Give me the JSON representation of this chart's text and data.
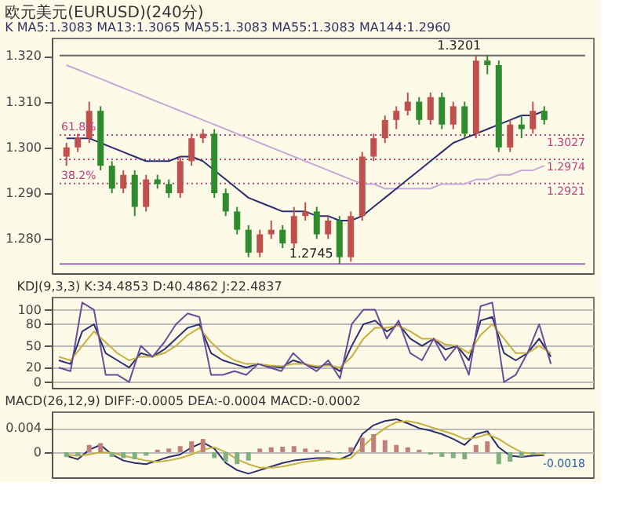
{
  "chart_data": [
    {
      "type": "candlestick",
      "title": "欧元美元(EURUSD)(240分)",
      "subtitle": "K MA5:1.3083 MA13:1.3065 MA55:1.3083 MA55:1.3083 MA144:1.2960",
      "categories": [
        null,
        null,
        null,
        null,
        null,
        null,
        null,
        null,
        null,
        null,
        null,
        null,
        null,
        null,
        null,
        null,
        null,
        null,
        null,
        null,
        null,
        null,
        null,
        null,
        null,
        null,
        null,
        null,
        null,
        null,
        null,
        null,
        null,
        null,
        null,
        null,
        null,
        null,
        null,
        null,
        null,
        null,
        null
      ],
      "ohlc": [
        [
          1.298,
          1.301,
          1.296,
          1.3
        ],
        [
          1.3,
          1.303,
          1.299,
          1.302
        ],
        [
          1.302,
          1.31,
          1.301,
          1.308
        ],
        [
          1.308,
          1.309,
          1.295,
          1.296
        ],
        [
          1.296,
          1.297,
          1.29,
          1.291
        ],
        [
          1.291,
          1.295,
          1.29,
          1.294
        ],
        [
          1.294,
          1.295,
          1.285,
          1.287
        ],
        [
          1.287,
          1.294,
          1.286,
          1.293
        ],
        [
          1.293,
          1.294,
          1.291,
          1.292
        ],
        [
          1.292,
          1.293,
          1.289,
          1.29
        ],
        [
          1.29,
          1.298,
          1.289,
          1.297
        ],
        [
          1.297,
          1.303,
          1.296,
          1.302
        ],
        [
          1.302,
          1.304,
          1.301,
          1.303
        ],
        [
          1.303,
          1.304,
          1.289,
          1.29
        ],
        [
          1.29,
          1.291,
          1.285,
          1.286
        ],
        [
          1.286,
          1.287,
          1.281,
          1.282
        ],
        [
          1.282,
          1.283,
          1.276,
          1.277
        ],
        [
          1.277,
          1.282,
          1.276,
          1.281
        ],
        [
          1.281,
          1.284,
          1.28,
          1.282
        ],
        [
          1.282,
          1.283,
          1.278,
          1.279
        ],
        [
          1.279,
          1.287,
          1.278,
          1.285
        ],
        [
          1.285,
          1.288,
          1.284,
          1.286
        ],
        [
          1.286,
          1.287,
          1.28,
          1.281
        ],
        [
          1.281,
          1.285,
          1.28,
          1.284
        ],
        [
          1.284,
          1.285,
          1.2745,
          1.276
        ],
        [
          1.276,
          1.286,
          1.275,
          1.285
        ],
        [
          1.285,
          1.299,
          1.284,
          1.298
        ],
        [
          1.298,
          1.303,
          1.297,
          1.302
        ],
        [
          1.302,
          1.307,
          1.301,
          1.306
        ],
        [
          1.306,
          1.309,
          1.304,
          1.308
        ],
        [
          1.308,
          1.312,
          1.307,
          1.31
        ],
        [
          1.31,
          1.311,
          1.305,
          1.306
        ],
        [
          1.306,
          1.312,
          1.305,
          1.311
        ],
        [
          1.311,
          1.312,
          1.304,
          1.305
        ],
        [
          1.305,
          1.31,
          1.304,
          1.309
        ],
        [
          1.309,
          1.31,
          1.302,
          1.303
        ],
        [
          1.303,
          1.32,
          1.302,
          1.319
        ],
        [
          1.319,
          1.3201,
          1.316,
          1.318
        ],
        [
          1.318,
          1.319,
          1.299,
          1.3
        ],
        [
          1.3,
          1.306,
          1.299,
          1.305
        ],
        [
          1.305,
          1.307,
          1.302,
          1.304
        ],
        [
          1.304,
          1.31,
          1.303,
          1.308
        ],
        [
          1.308,
          1.309,
          1.305,
          1.306
        ]
      ],
      "colors": [
        "#c0504d",
        "#c0504d",
        "#c0504d",
        "#2e8b2e",
        "#2e8b2e",
        "#c0504d",
        "#2e8b2e",
        "#c0504d",
        "#2e8b2e",
        "#2e8b2e",
        "#c0504d",
        "#c0504d",
        "#c0504d",
        "#2e8b2e",
        "#2e8b2e",
        "#2e8b2e",
        "#2e8b2e",
        "#c0504d",
        "#c0504d",
        "#2e8b2e",
        "#c0504d",
        "#c0504d",
        "#2e8b2e",
        "#c0504d",
        "#2e8b2e",
        "#c0504d",
        "#c0504d",
        "#c0504d",
        "#c0504d",
        "#c0504d",
        "#c0504d",
        "#2e8b2e",
        "#c0504d",
        "#2e8b2e",
        "#c0504d",
        "#2e8b2e",
        "#c0504d",
        "#2e8b2e",
        "#2e8b2e",
        "#c0504d",
        "#2e8b2e",
        "#c0504d",
        "#2e8b2e"
      ],
      "series": [
        {
          "type": "line",
          "color": "#c8a8d8",
          "values": [
            1.318,
            1.317,
            1.316,
            1.315,
            1.314,
            1.313,
            1.312,
            1.311,
            1.31,
            1.309,
            1.308,
            1.307,
            1.306,
            1.305,
            1.304,
            1.303,
            1.302,
            1.301,
            1.3,
            1.299,
            1.298,
            1.297,
            1.296,
            1.295,
            1.294,
            1.293,
            1.292,
            1.292,
            1.291,
            1.291,
            1.291,
            1.291,
            1.291,
            1.292,
            1.292,
            1.292,
            1.293,
            1.293,
            1.294,
            1.294,
            1.295,
            1.295,
            1.296
          ]
        },
        {
          "type": "line",
          "color": "#2b2f6e",
          "values": [
            1.302,
            1.302,
            1.302,
            1.301,
            1.3,
            1.299,
            1.298,
            1.297,
            1.297,
            1.297,
            1.298,
            1.298,
            1.297,
            1.295,
            1.293,
            1.291,
            1.289,
            1.288,
            1.287,
            1.286,
            1.286,
            1.286,
            1.285,
            1.285,
            1.284,
            1.284,
            1.285,
            1.287,
            1.289,
            1.291,
            1.293,
            1.295,
            1.297,
            1.299,
            1.301,
            1.302,
            1.303,
            1.304,
            1.305,
            1.306,
            1.307,
            1.307,
            1.308
          ]
        }
      ],
      "ylim": [
        1.2725,
        1.324
      ],
      "yticks": [
        {
          "value": 1.28,
          "label": "1.280"
        },
        {
          "value": 1.29,
          "label": "1.290"
        },
        {
          "value": 1.3,
          "label": "1.300"
        },
        {
          "value": 1.31,
          "label": "1.310"
        },
        {
          "value": 1.32,
          "label": "1.320"
        }
      ],
      "ref_lines": [
        {
          "axis": "y",
          "value": 1.3201,
          "label": null,
          "color": "#666666",
          "line_style": "solid"
        },
        {
          "axis": "y",
          "value": 1.3027,
          "label": "1.3027",
          "color": "#c04080",
          "line_style": "dotted"
        },
        {
          "axis": "y",
          "value": 1.2974,
          "label": "1.2974",
          "color": "#c04080",
          "line_style": "dotted"
        },
        {
          "axis": "y",
          "value": 1.2921,
          "label": "1.2921",
          "color": "#c04080",
          "line_style": "dotted"
        },
        {
          "axis": "y",
          "value": 1.2745,
          "label": null,
          "color": "#9a70b0",
          "line_style": "solid"
        }
      ],
      "annotations": [
        {
          "text": "61.8%",
          "y": 1.3027
        },
        {
          "text": "38.2%",
          "y": 1.2921
        },
        {
          "text": "1.3201",
          "y": 1.3201
        },
        {
          "text": "1.2745",
          "y": 1.2745
        }
      ],
      "tick_labels": "y",
      "grid": false
    },
    {
      "type": "line",
      "title": "KDJ(9,3,3) K:34.4853 D:40.4862 J:22.4837",
      "categories": [
        null,
        null,
        null,
        null,
        null,
        null,
        null,
        null,
        null,
        null,
        null,
        null,
        null,
        null,
        null,
        null,
        null,
        null,
        null,
        null,
        null,
        null,
        null,
        null,
        null,
        null,
        null,
        null,
        null,
        null,
        null,
        null,
        null,
        null,
        null,
        null,
        null,
        null,
        null,
        null,
        null,
        null,
        null
      ],
      "series": [
        {
          "color": "#2b2f6e",
          "values": [
            30,
            25,
            70,
            80,
            40,
            30,
            20,
            40,
            35,
            45,
            60,
            75,
            80,
            40,
            30,
            25,
            20,
            25,
            22,
            20,
            30,
            25,
            20,
            25,
            15,
            50,
            80,
            85,
            70,
            80,
            60,
            50,
            60,
            45,
            50,
            30,
            85,
            90,
            40,
            30,
            40,
            60,
            35
          ]
        },
        {
          "color": "#c8b040",
          "values": [
            35,
            30,
            50,
            70,
            55,
            40,
            30,
            35,
            35,
            40,
            50,
            65,
            75,
            55,
            40,
            30,
            25,
            25,
            23,
            22,
            25,
            25,
            22,
            23,
            20,
            35,
            60,
            75,
            75,
            78,
            70,
            60,
            60,
            52,
            50,
            40,
            65,
            80,
            60,
            40,
            40,
            50,
            40
          ]
        },
        {
          "color": "#6a4c9c",
          "values": [
            20,
            15,
            110,
            100,
            10,
            10,
            0,
            50,
            35,
            55,
            80,
            95,
            90,
            10,
            10,
            15,
            10,
            25,
            20,
            15,
            40,
            25,
            15,
            30,
            5,
            80,
            100,
            100,
            60,
            85,
            40,
            30,
            60,
            30,
            50,
            10,
            105,
            110,
            0,
            10,
            40,
            80,
            25
          ]
        }
      ],
      "ylim": [
        -8,
        118
      ],
      "yticks": [
        0,
        20,
        50,
        80,
        100
      ],
      "tick_labels": "y",
      "grid": "y"
    },
    {
      "type": "bar",
      "title": "MACD(26,12,9) DIFF:-0.0005 DEA:-0.0004 MACD:-0.0002",
      "categories": [
        null,
        null,
        null,
        null,
        null,
        null,
        null,
        null,
        null,
        null,
        null,
        null,
        null,
        null,
        null,
        null,
        null,
        null,
        null,
        null,
        null,
        null,
        null,
        null,
        null,
        null,
        null,
        null,
        null,
        null,
        null,
        null,
        null,
        null,
        null,
        null,
        null,
        null,
        null,
        null,
        null,
        null,
        null
      ],
      "values": [
        -0.0008,
        -0.0006,
        0.0012,
        0.0015,
        -0.0008,
        -0.001,
        -0.0012,
        -0.0006,
        0.0004,
        0.0006,
        0.001,
        0.0018,
        0.0022,
        -0.001,
        -0.0016,
        -0.002,
        -0.0014,
        0.0006,
        0.0008,
        0.0009,
        0.001,
        0.0006,
        0.0004,
        0.0002,
        -0.0002,
        0.0008,
        0.0024,
        0.003,
        0.002,
        0.0012,
        0.0008,
        0.0004,
        -0.0004,
        -0.0008,
        -0.001,
        -0.0012,
        0.0012,
        0.0018,
        -0.002,
        -0.0016,
        -0.0008,
        -0.0004,
        -0.0002
      ],
      "colors": [
        "#7fb07f",
        "#7fb07f",
        "#c08078",
        "#c08078",
        "#7fb07f",
        "#7fb07f",
        "#7fb07f",
        "#7fb07f",
        "#c08078",
        "#c08078",
        "#c08078",
        "#c08078",
        "#c08078",
        "#7fb07f",
        "#7fb07f",
        "#7fb07f",
        "#7fb07f",
        "#c08078",
        "#c08078",
        "#c08078",
        "#c08078",
        "#c08078",
        "#c08078",
        "#c08078",
        "#7fb07f",
        "#c08078",
        "#c08078",
        "#c08078",
        "#c08078",
        "#c08078",
        "#c08078",
        "#c08078",
        "#7fb07f",
        "#7fb07f",
        "#7fb07f",
        "#7fb07f",
        "#c08078",
        "#c08078",
        "#7fb07f",
        "#7fb07f",
        "#7fb07f",
        "#7fb07f",
        "#7fb07f"
      ],
      "series": [
        {
          "type": "line",
          "color": "#2b2f6e",
          "values": [
            -0.0006,
            -0.0012,
            0.0004,
            0.0012,
            -0.0004,
            -0.0014,
            -0.0018,
            -0.002,
            -0.0014,
            -0.0008,
            -0.0004,
            0.0008,
            0.0016,
            0.0006,
            -0.0018,
            -0.003,
            -0.0036,
            -0.003,
            -0.0024,
            -0.0018,
            -0.0014,
            -0.0012,
            -0.001,
            -0.001,
            -0.0012,
            -0.0004,
            0.003,
            0.0045,
            0.0052,
            0.0055,
            0.0048,
            0.004,
            0.0036,
            0.003,
            0.0022,
            0.0012,
            0.003,
            0.0035,
            0.0008,
            -0.0006,
            -0.0008,
            -0.0006,
            -0.0005
          ]
        },
        {
          "type": "line",
          "color": "#c8b040",
          "values": [
            -0.0004,
            -0.0006,
            -0.0004,
            0.0,
            -0.0001,
            -0.0006,
            -0.001,
            -0.0014,
            -0.0016,
            -0.0014,
            -0.001,
            -0.0004,
            0.0004,
            0.0008,
            0.0,
            -0.0012,
            -0.002,
            -0.0026,
            -0.0026,
            -0.0024,
            -0.002,
            -0.0016,
            -0.0014,
            -0.0012,
            -0.0012,
            -0.001,
            0.0008,
            0.0026,
            0.004,
            0.005,
            0.0052,
            0.0048,
            0.0042,
            0.0036,
            0.003,
            0.0022,
            0.0024,
            0.003,
            0.0022,
            0.001,
            0.0,
            -0.0003,
            -0.0004
          ]
        }
      ],
      "ylim": [
        -0.0042,
        0.0068
      ],
      "yticks": [
        0,
        0.004
      ],
      "annotations": [
        "-0.0018"
      ],
      "tick_labels": "y",
      "grid": "y"
    }
  ]
}
